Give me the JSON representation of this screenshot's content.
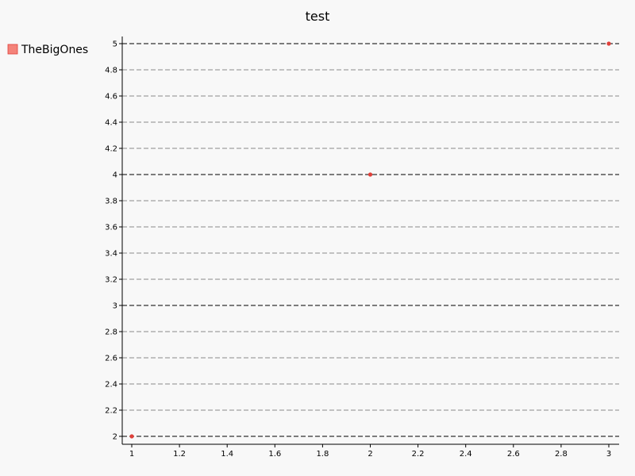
{
  "chart_data": {
    "type": "scatter",
    "title": "test",
    "xlabel": "",
    "ylabel": "",
    "xlim": [
      1,
      3
    ],
    "ylim": [
      2,
      5
    ],
    "x_ticks": [
      "1",
      "1.2",
      "1.4",
      "1.6",
      "1.8",
      "2",
      "2.2",
      "2.4",
      "2.6",
      "2.8",
      "3"
    ],
    "y_ticks": [
      "2",
      "2.2",
      "2.4",
      "2.6",
      "2.8",
      "3",
      "3.2",
      "3.4",
      "3.6",
      "3.8",
      "4",
      "4.2",
      "4.4",
      "4.6",
      "4.8",
      "5"
    ],
    "grid": true,
    "legend_position": "top-left",
    "series": [
      {
        "name": "TheBigOnes",
        "color": "#e0403a",
        "legend_color": "#f4837a",
        "points": [
          {
            "x": 1,
            "y": 2
          },
          {
            "x": 2,
            "y": 4
          },
          {
            "x": 3,
            "y": 5
          }
        ]
      }
    ]
  }
}
